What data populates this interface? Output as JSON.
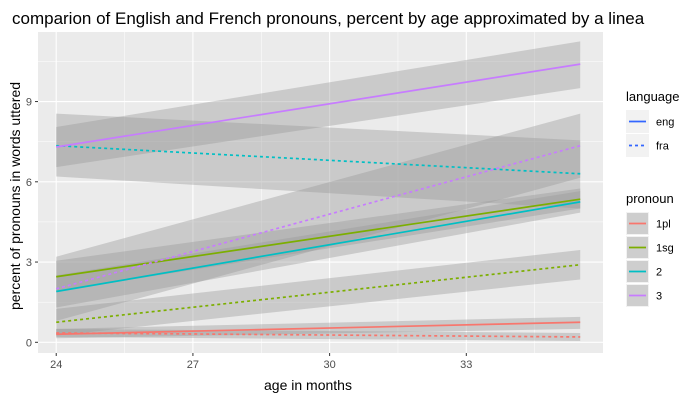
{
  "chart_data": {
    "type": "line",
    "title": "comparion of English and French pronouns, percent by age approximated by a linea",
    "xlabel": "age in months",
    "ylabel": "percent of pronouns in words uttered",
    "xlim": [
      23.6,
      36.0
    ],
    "ylim": [
      -0.4,
      11.6
    ],
    "x_ticks": [
      24,
      27,
      30,
      33
    ],
    "y_ticks": [
      0,
      3,
      6,
      9
    ],
    "x_tick_labels": [
      "24",
      "27",
      "30",
      "33"
    ],
    "y_tick_labels": [
      "0",
      "3",
      "6",
      "9"
    ],
    "grid": true,
    "legend_position": "right",
    "legends": [
      {
        "title": "language",
        "entries": [
          {
            "label": "eng",
            "linetype": "solid",
            "color": "#3366ff"
          },
          {
            "label": "fra",
            "linetype": "dashed",
            "color": "#3366ff"
          }
        ]
      },
      {
        "title": "pronoun",
        "entries": [
          {
            "label": "1pl",
            "color": "#f8766d"
          },
          {
            "label": "1sg",
            "color": "#7cae00"
          },
          {
            "label": "2",
            "color": "#00bfc4"
          },
          {
            "label": "3",
            "color": "#c77cff"
          }
        ]
      }
    ],
    "series": [
      {
        "pronoun": "1pl",
        "language": "eng",
        "color": "#f8766d",
        "linetype": "solid",
        "x": [
          24,
          35.5
        ],
        "y": [
          0.3,
          0.75
        ],
        "ci_lower": [
          0.15,
          0.5
        ],
        "ci_upper": [
          0.5,
          0.95
        ]
      },
      {
        "pronoun": "1pl",
        "language": "fra",
        "color": "#f8766d",
        "linetype": "dashed",
        "x": [
          24,
          35.5
        ],
        "y": [
          0.35,
          0.2
        ],
        "ci_lower": [
          0.2,
          0.05
        ],
        "ci_upper": [
          0.5,
          0.35
        ]
      },
      {
        "pronoun": "1sg",
        "language": "eng",
        "color": "#7cae00",
        "linetype": "solid",
        "x": [
          24,
          35.5
        ],
        "y": [
          2.45,
          5.35
        ],
        "ci_lower": [
          1.9,
          5.0
        ],
        "ci_upper": [
          3.05,
          5.75
        ]
      },
      {
        "pronoun": "1sg",
        "language": "fra",
        "color": "#7cae00",
        "linetype": "dashed",
        "x": [
          24,
          35.5
        ],
        "y": [
          0.75,
          2.9
        ],
        "ci_lower": [
          0.25,
          2.35
        ],
        "ci_upper": [
          1.25,
          3.45
        ]
      },
      {
        "pronoun": "2",
        "language": "eng",
        "color": "#00bfc4",
        "linetype": "solid",
        "x": [
          24,
          35.5
        ],
        "y": [
          1.9,
          5.25
        ],
        "ci_lower": [
          1.3,
          4.85
        ],
        "ci_upper": [
          2.5,
          5.65
        ]
      },
      {
        "pronoun": "2",
        "language": "fra",
        "color": "#00bfc4",
        "linetype": "dashed",
        "x": [
          24,
          35.5
        ],
        "y": [
          7.35,
          6.3
        ],
        "ci_lower": [
          6.2,
          5.0
        ],
        "ci_upper": [
          8.55,
          7.55
        ]
      },
      {
        "pronoun": "3",
        "language": "eng",
        "color": "#c77cff",
        "linetype": "solid",
        "x": [
          24,
          35.5
        ],
        "y": [
          7.3,
          10.4
        ],
        "ci_lower": [
          6.55,
          9.5
        ],
        "ci_upper": [
          8.05,
          11.25
        ]
      },
      {
        "pronoun": "3",
        "language": "fra",
        "color": "#c77cff",
        "linetype": "dashed",
        "x": [
          24,
          35.5
        ],
        "y": [
          2.0,
          7.35
        ],
        "ci_lower": [
          0.8,
          6.15
        ],
        "ci_upper": [
          3.2,
          8.55
        ]
      }
    ],
    "colors": {
      "panel": "#ebebeb",
      "grid_major": "#ffffff",
      "ribbon": "#999999",
      "tick_label": "#4d4d4d",
      "legend_key_bg": "#f2f2f2"
    }
  }
}
